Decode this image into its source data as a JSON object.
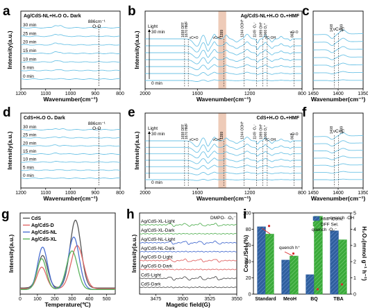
{
  "chart_data": [
    {
      "id": "a",
      "panel_label": "a",
      "type": "line",
      "title": "Ag/CdS-NL+H₂O  O₂ Dark",
      "xlabel": "Wavenumber(cm⁻¹)",
      "ylabel": "Intensity(a.u.)",
      "xlim": [
        1200,
        800
      ],
      "x_ticks": [
        "1200",
        "1100",
        "1000",
        "900",
        "800"
      ],
      "series_labels": [
        "30 min",
        "25 min",
        "20 min",
        "15 min",
        "10 min",
        "5 min",
        "0 min"
      ],
      "annotations": [
        {
          "text": "886cm⁻¹",
          "x": 886
        },
        {
          "text": "O-O",
          "x": 886
        }
      ],
      "line_color": "#6ec3e6",
      "features": [
        {
          "x": 1060,
          "amp": 0.9,
          "w": 12
        },
        {
          "x": 1040,
          "amp": 0.7,
          "w": 10
        },
        {
          "x": 886,
          "amp": 0.3,
          "w": 4
        }
      ]
    },
    {
      "id": "b",
      "panel_label": "b",
      "type": "line",
      "title": "Ag/CdS-NL+H₂O  O₂+HMF",
      "xlabel": "Wavenumber(cm⁻¹)",
      "ylabel": "Intensity(a.u.)",
      "xlim": [
        2000,
        800
      ],
      "x_ticks": [
        "2000",
        "1600",
        "1200",
        "800"
      ],
      "series_labels": [
        "30 min",
        "0 min"
      ],
      "light_label": "Light",
      "annotations": [
        {
          "text": "1698 DFF",
          "x": 1698
        },
        {
          "text": "1670 HMF",
          "x": 1670
        },
        {
          "text": "νC=O",
          "x": 1620
        },
        {
          "text": "νC=C",
          "x": 1440
        },
        {
          "text": "1399",
          "x": 1399
        },
        {
          "text": "1244 OOH*",
          "x": 1244
        },
        {
          "text": "1149 ·O₂⁻",
          "x": 1149
        },
        {
          "text": "1099 OH*",
          "x": 1099
        },
        {
          "text": "1066 O₂*",
          "x": 1066
        },
        {
          "text": "νC-OH",
          "x": 1040
        },
        {
          "text": "861",
          "x": 861
        },
        {
          "text": "νO-O",
          "x": 850
        }
      ],
      "highlight_x": [
        1440,
        1380
      ],
      "line_color": "#6ec3e6",
      "features": [
        {
          "x": 1600,
          "amp": -2.5,
          "w": 40
        },
        {
          "x": 1560,
          "amp": 2.0,
          "w": 25
        },
        {
          "x": 1520,
          "amp": -2.2,
          "w": 18
        },
        {
          "x": 1470,
          "amp": 1.5,
          "w": 15
        },
        {
          "x": 1380,
          "amp": 1.2,
          "w": 18
        },
        {
          "x": 1300,
          "amp": -1.0,
          "w": 25
        },
        {
          "x": 1220,
          "amp": 1.5,
          "w": 22
        },
        {
          "x": 1140,
          "amp": -1.4,
          "w": 12
        },
        {
          "x": 1080,
          "amp": 1.3,
          "w": 15
        },
        {
          "x": 1030,
          "amp": -1.0,
          "w": 15
        },
        {
          "x": 960,
          "amp": 0.8,
          "w": 15
        },
        {
          "x": 890,
          "amp": -0.6,
          "w": 10
        }
      ]
    },
    {
      "id": "c",
      "panel_label": "c",
      "type": "line",
      "xlabel": "Wavenumber(cm⁻¹)",
      "ylabel": "",
      "xlim": [
        1450,
        1350
      ],
      "x_ticks": [
        "1450",
        "1400",
        "1350"
      ],
      "annotations": [
        {
          "text": "νC=C",
          "x": 1400
        },
        {
          "text": "1408",
          "x": 1408
        },
        {
          "text": "1399",
          "x": 1399
        }
      ],
      "line_color": "#6ec3e6",
      "features": [
        {
          "x": 1412,
          "amp": -1.2,
          "w": 7
        },
        {
          "x": 1390,
          "amp": 1.2,
          "w": 8
        }
      ]
    },
    {
      "id": "d",
      "panel_label": "d",
      "type": "line",
      "title": "CdS+H₂O  O₂ Dark",
      "xlabel": "Wavenumber(cm⁻¹)",
      "ylabel": "Intensity(a.u.)",
      "xlim": [
        1200,
        800
      ],
      "x_ticks": [
        "1200",
        "1100",
        "1000",
        "900",
        "800"
      ],
      "series_labels": [
        "30 min",
        "25 min",
        "20 min",
        "15 min",
        "10 min",
        "5 min",
        "0 min"
      ],
      "annotations": [
        {
          "text": "886cm⁻¹",
          "x": 886
        },
        {
          "text": "O-O",
          "x": 886
        }
      ],
      "line_color": "#6ec3e6",
      "features": [
        {
          "x": 1060,
          "amp": 0.5,
          "w": 12
        },
        {
          "x": 1030,
          "amp": 0.3,
          "w": 10
        },
        {
          "x": 886,
          "amp": 0.2,
          "w": 4
        }
      ]
    },
    {
      "id": "e",
      "panel_label": "e",
      "type": "line",
      "title": "CdS+H₂O  O₂+HMF",
      "xlabel": "Wavenumber(cm⁻¹)",
      "ylabel": "Intensity(a.u.)",
      "xlim": [
        2000,
        800
      ],
      "x_ticks": [
        "2000",
        "1600",
        "1200",
        "800"
      ],
      "series_labels": [
        "30 min",
        "0 min"
      ],
      "light_label": "Light",
      "annotations": [
        {
          "text": "1698 DFF",
          "x": 1698
        },
        {
          "text": "1670 HMF",
          "x": 1670
        },
        {
          "text": "νC=O",
          "x": 1620
        },
        {
          "text": "νC=C",
          "x": 1440
        },
        {
          "text": "1399",
          "x": 1399
        },
        {
          "text": "1244 OOH*",
          "x": 1244
        },
        {
          "text": "1149 ·O₂⁻",
          "x": 1149
        },
        {
          "text": "1099 OH*",
          "x": 1099
        },
        {
          "text": "1066 O₂*",
          "x": 1066
        },
        {
          "text": "νC-OH",
          "x": 1040
        },
        {
          "text": "861",
          "x": 861
        },
        {
          "text": "νO-O",
          "x": 850
        }
      ],
      "highlight_x": [
        1440,
        1380
      ],
      "line_color": "#6ec3e6",
      "features": [
        {
          "x": 1600,
          "amp": -2.0,
          "w": 40
        },
        {
          "x": 1560,
          "amp": 1.6,
          "w": 25
        },
        {
          "x": 1520,
          "amp": -1.8,
          "w": 18
        },
        {
          "x": 1470,
          "amp": 1.2,
          "w": 15
        },
        {
          "x": 1380,
          "amp": 0.9,
          "w": 18
        },
        {
          "x": 1300,
          "amp": -0.8,
          "w": 25
        },
        {
          "x": 1220,
          "amp": 1.2,
          "w": 22
        },
        {
          "x": 1140,
          "amp": -1.0,
          "w": 12
        },
        {
          "x": 1080,
          "amp": 1.0,
          "w": 15
        },
        {
          "x": 1030,
          "amp": -0.8,
          "w": 15
        },
        {
          "x": 960,
          "amp": 0.6,
          "w": 15
        },
        {
          "x": 890,
          "amp": -0.5,
          "w": 10
        }
      ]
    },
    {
      "id": "f",
      "panel_label": "f",
      "type": "line",
      "xlabel": "Wavenumber(cm⁻¹)",
      "ylabel": "",
      "xlim": [
        1450,
        1350
      ],
      "x_ticks": [
        "1450",
        "1400",
        "1350"
      ],
      "annotations": [
        {
          "text": "νC=C",
          "x": 1400
        },
        {
          "text": "1408",
          "x": 1408
        },
        {
          "text": "1399",
          "x": 1399
        }
      ],
      "line_color": "#6ec3e6",
      "features": [
        {
          "x": 1412,
          "amp": -0.9,
          "w": 7
        },
        {
          "x": 1390,
          "amp": 0.9,
          "w": 8
        }
      ]
    },
    {
      "id": "g",
      "panel_label": "g",
      "type": "line",
      "xlabel": "Temperature(℃)",
      "ylabel": "Intensity(a.u.)",
      "xlim": [
        0,
        550
      ],
      "x_ticks": [
        "0",
        "100",
        "200",
        "300",
        "400",
        "500"
      ],
      "legend_position": "top-left",
      "series": [
        {
          "name": "CdS",
          "color": "#555555",
          "peaks": [
            {
              "x": 130,
              "h": 0.42,
              "w": 40
            },
            {
              "x": 320,
              "h": 0.88,
              "w": 45
            }
          ],
          "baseline": 0.08
        },
        {
          "name": "Ag/CdS-D",
          "color": "#e06666",
          "peaks": [
            {
              "x": 125,
              "h": 0.28,
              "w": 38
            },
            {
              "x": 330,
              "h": 0.56,
              "w": 50
            }
          ],
          "baseline": 0.07
        },
        {
          "name": "Ag/CdS-NL",
          "color": "#4a6fd0",
          "peaks": [
            {
              "x": 130,
              "h": 0.55,
              "w": 40
            },
            {
              "x": 310,
              "h": 0.68,
              "w": 45
            }
          ],
          "baseline": 0.06
        },
        {
          "name": "Ag/CdS-XL",
          "color": "#5bb35b",
          "peaks": [
            {
              "x": 125,
              "h": 0.4,
              "w": 38
            },
            {
              "x": 300,
              "h": 0.5,
              "w": 45
            }
          ],
          "baseline": 0.06
        }
      ]
    },
    {
      "id": "h",
      "panel_label": "h",
      "type": "line",
      "xlabel": "Magetic field(G)",
      "ylabel": "Intensity(a.u.)",
      "xlim": [
        3460,
        3550
      ],
      "x_ticks": [
        "3475",
        "3500",
        "3525",
        "3550"
      ],
      "annotations": [
        {
          "text": "DMPO- ·O₂⁻"
        }
      ],
      "series": [
        {
          "name": "Ag/CdS-XL-Light",
          "color": "#5bb35b",
          "amp": 0.9
        },
        {
          "name": "Ag/CdS-XL-Dark",
          "color": "#5bb35b",
          "amp": 0.12
        },
        {
          "name": "Ag/CdS-NL-Light",
          "color": "#4a6fd0",
          "amp": 1.0
        },
        {
          "name": "Ag/CdS-NL-Dark",
          "color": "#4a6fd0",
          "amp": 0.12
        },
        {
          "name": "Ag/CdS-D-Light",
          "color": "#e06666",
          "amp": 0.9
        },
        {
          "name": "Ag/CdS-D-Dark",
          "color": "#e06666",
          "amp": 0.12
        },
        {
          "name": "CdS-Light",
          "color": "#555555",
          "amp": 1.1
        },
        {
          "name": "CdS-Dark",
          "color": "#555555",
          "amp": 0.15
        }
      ]
    },
    {
      "id": "i",
      "panel_label": "i",
      "type": "bar",
      "xlabel": "",
      "ylabel": "Conv./Sel.(%)",
      "y2label": "H₂O₂(mmol g⁻¹ h⁻¹)",
      "categories": [
        "Standard",
        "MeoH",
        "BQ",
        "TBA"
      ],
      "ylim": [
        0,
        100
      ],
      "y_ticks": [
        "0",
        "20",
        "40",
        "60",
        "80",
        "100"
      ],
      "y2lim": [
        0,
        5
      ],
      "y2_ticks": [
        "0",
        "1",
        "2",
        "3",
        "4",
        "5"
      ],
      "legend_position": "top-right",
      "series": [
        {
          "name": "HMF Conv.",
          "color": "#2f5f9e",
          "values": [
            83,
            42,
            24,
            78
          ]
        },
        {
          "name": "DFF Sel.",
          "color": "#3aaa3a",
          "values": [
            74,
            47,
            96,
            67
          ]
        }
      ],
      "h2o2_values": [
        4.2,
        2.5,
        0.3,
        0.6
      ],
      "annotations": [
        {
          "text": "quench ·O₂⁻"
        },
        {
          "text": "quench h⁺"
        },
        {
          "text": "quench ·OH"
        }
      ]
    }
  ]
}
